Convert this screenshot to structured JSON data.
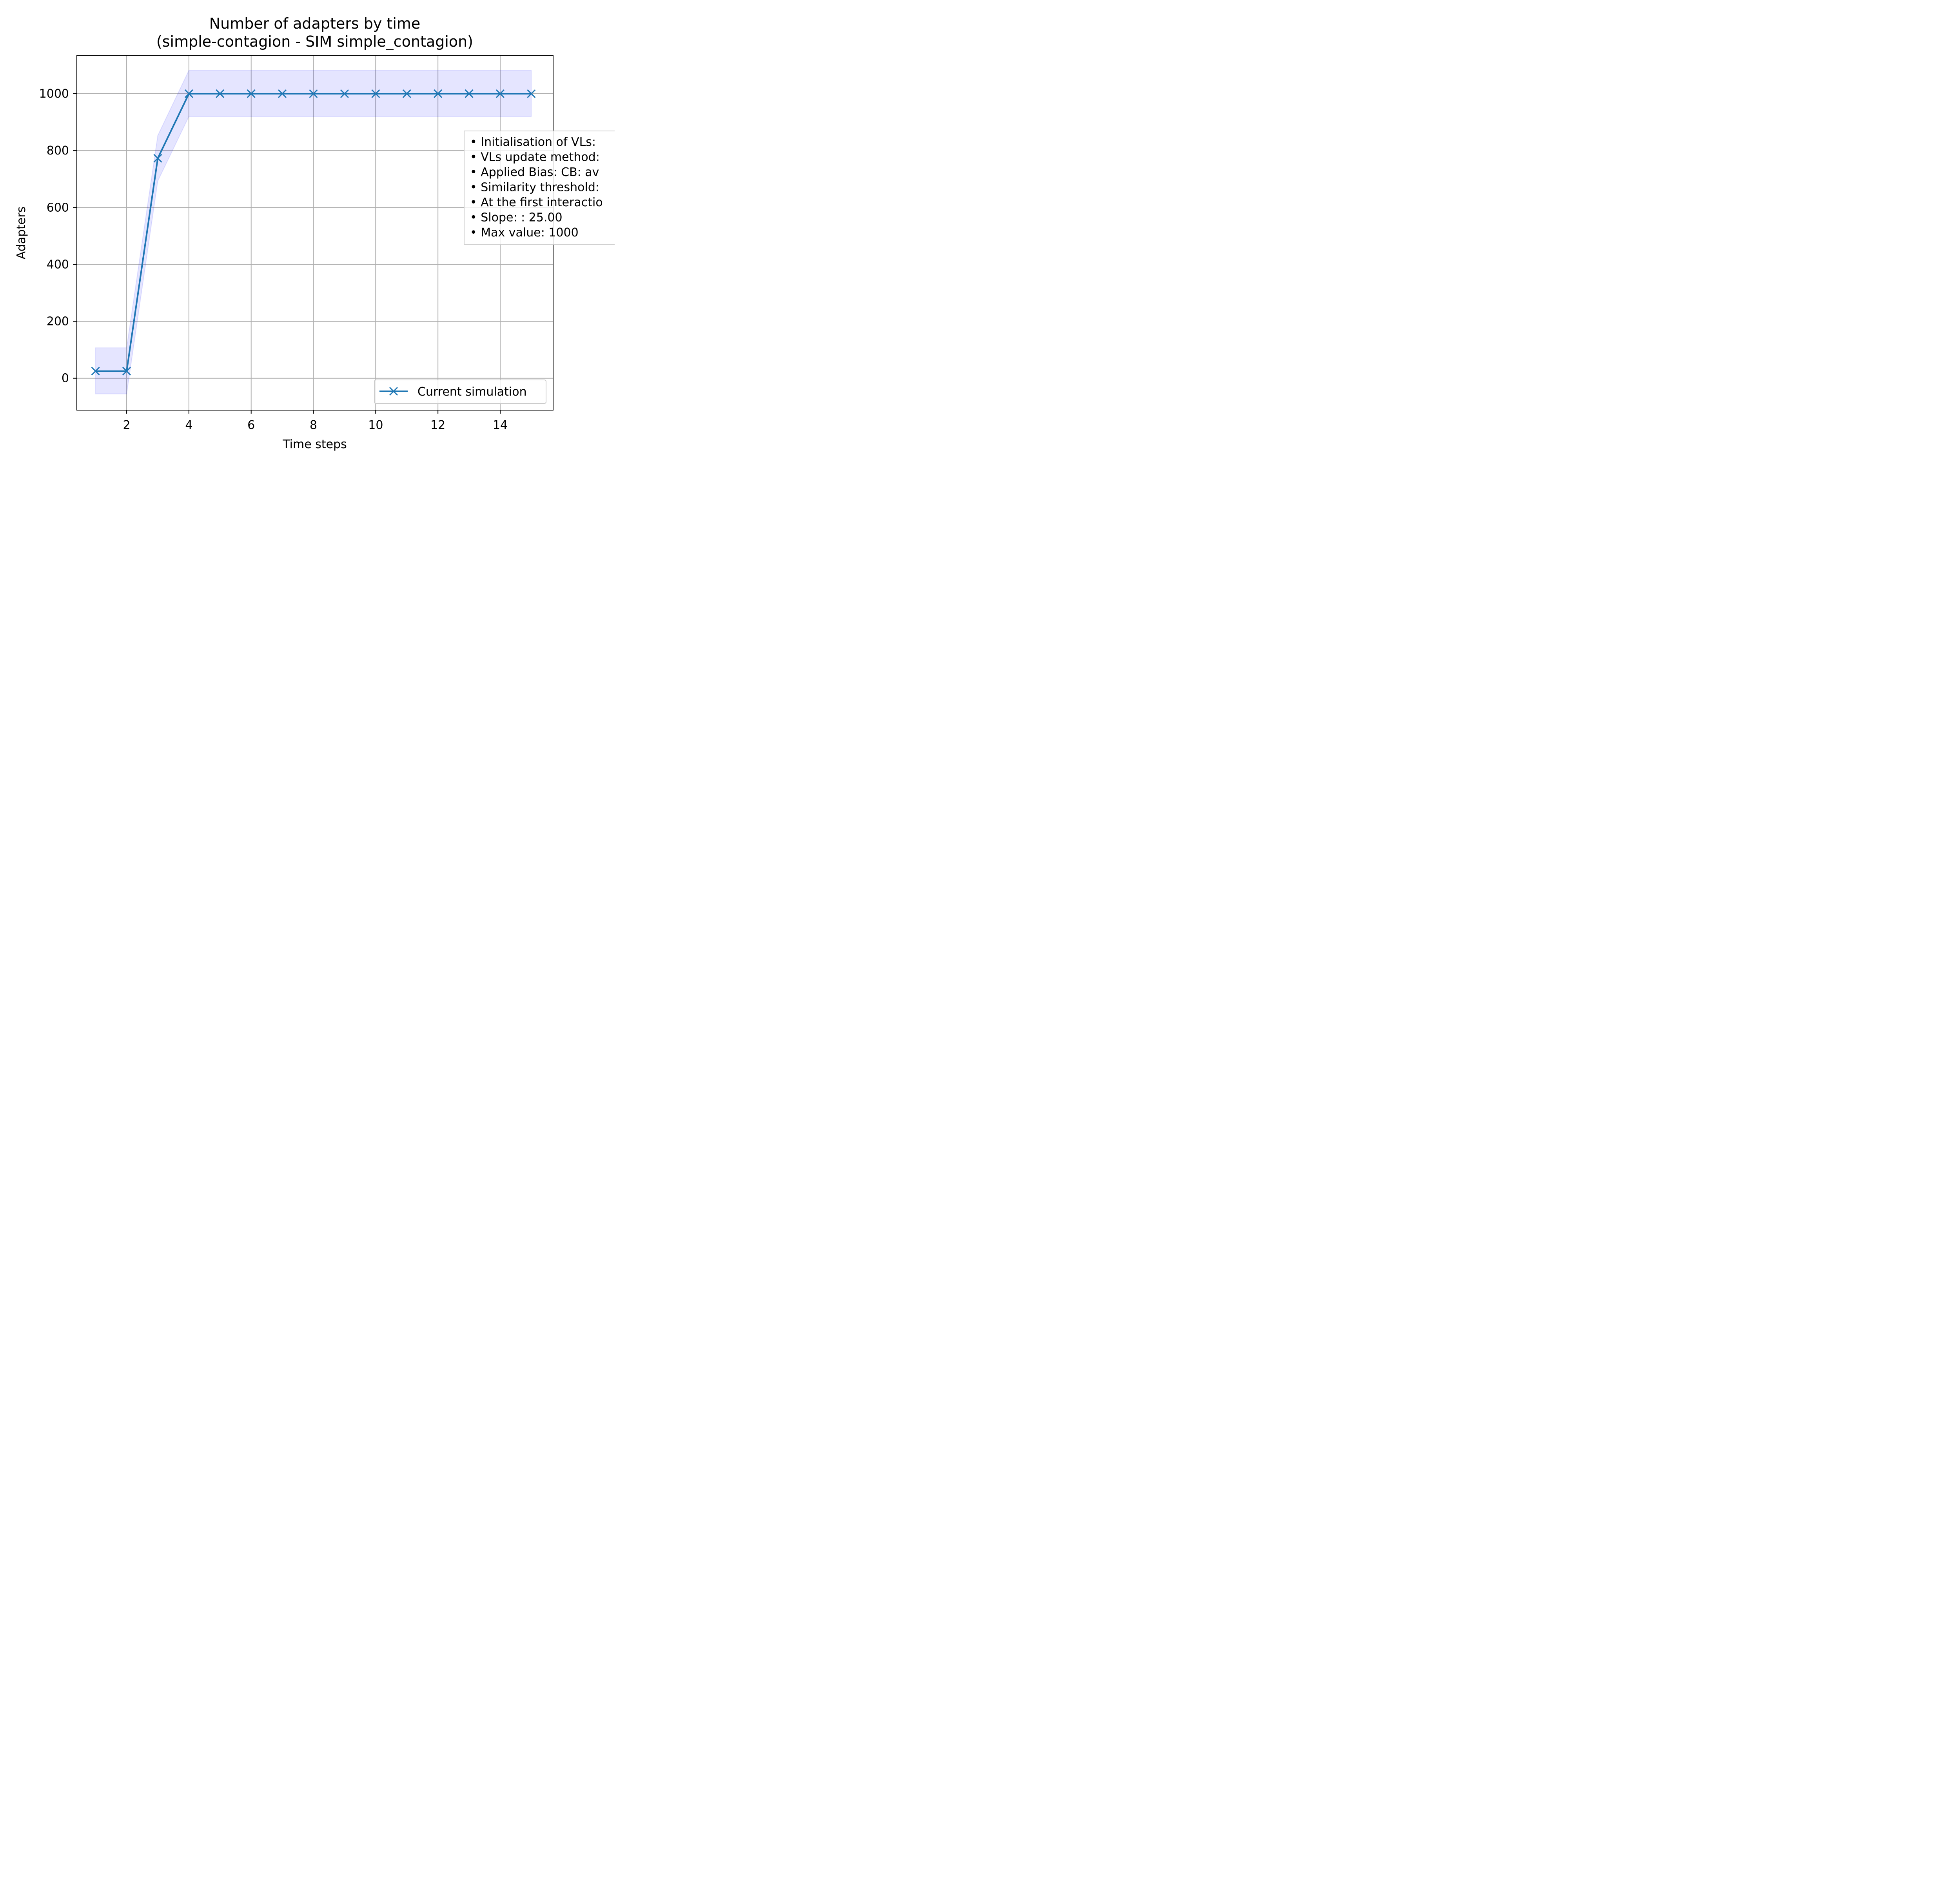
{
  "chart_data": {
    "type": "line",
    "title_line1": "Number of adapters by time",
    "title_line2": "(simple-contagion - SIM simple_contagion)",
    "xlabel": "Time steps",
    "ylabel": "Adapters",
    "xlim": [
      0.4,
      15.7
    ],
    "ylim": [
      -112,
      1135
    ],
    "x_ticks": [
      2,
      4,
      6,
      8,
      10,
      12,
      14
    ],
    "y_ticks": [
      0,
      200,
      400,
      600,
      800,
      1000
    ],
    "grid": true,
    "line_color": "#1f77b4",
    "band_color": "#0000ff",
    "series": [
      {
        "name": "Current simulation",
        "marker": "x",
        "x": [
          1,
          2,
          3,
          4,
          5,
          6,
          7,
          8,
          9,
          10,
          11,
          12,
          13,
          14,
          15
        ],
        "y": [
          25,
          25,
          773,
          1000,
          1000,
          1000,
          1000,
          1000,
          1000,
          1000,
          1000,
          1000,
          1000,
          1000,
          1000
        ]
      }
    ],
    "band": {
      "x": [
        1,
        2,
        3,
        4,
        5,
        6,
        7,
        8,
        9,
        10,
        11,
        12,
        13,
        14,
        15
      ],
      "lower": [
        -55,
        -55,
        693,
        920,
        920,
        920,
        920,
        920,
        920,
        920,
        920,
        920,
        920,
        920,
        920
      ],
      "upper": [
        107,
        107,
        853,
        1082,
        1082,
        1082,
        1082,
        1082,
        1082,
        1082,
        1082,
        1082,
        1082,
        1082,
        1082
      ]
    },
    "legend_position": "lower-right",
    "annotation_lines": [
      "• Initialisation of VLs:",
      "• VLs update method:",
      "• Applied Bias: CB: av",
      "• Similarity threshold:",
      "• At the first interactio",
      "• Slope: : 25.00",
      "• Max value: 1000"
    ]
  }
}
